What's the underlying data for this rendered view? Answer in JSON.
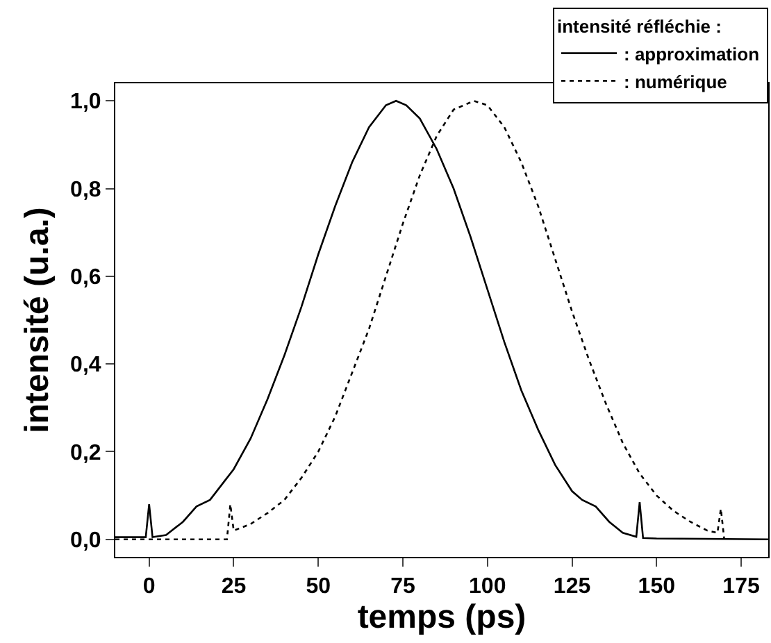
{
  "chart_data": {
    "type": "line",
    "xlabel": "temps (ps)",
    "ylabel": "intensité (u.a.)",
    "legend_title": "intensité réfléchie :",
    "xlim": [
      -10,
      183
    ],
    "xticks": [
      0,
      25,
      50,
      75,
      100,
      125,
      150,
      175
    ],
    "ylim": [
      -0.04,
      1.04
    ],
    "yticks": [
      {
        "value": 0,
        "label": "0,0"
      },
      {
        "value": 0.2,
        "label": "0,2"
      },
      {
        "value": 0.4,
        "label": "0,4"
      },
      {
        "value": 0.6,
        "label": "0,6"
      },
      {
        "value": 0.8,
        "label": "0,8"
      },
      {
        "value": 1.0,
        "label": "1,0"
      }
    ],
    "legend": "top right",
    "marker": "none",
    "series": [
      {
        "name": ": approximation",
        "color": "#000000",
        "line_style": "solid",
        "x": [
          -10,
          -1,
          0,
          1,
          5,
          10,
          14,
          18,
          22,
          25,
          30,
          35,
          40,
          45,
          50,
          55,
          60,
          65,
          70,
          73,
          76,
          80,
          85,
          90,
          95,
          100,
          105,
          110,
          115,
          120,
          125,
          128,
          132,
          136,
          140,
          144,
          145,
          146,
          150,
          183
        ],
        "values": [
          0.005,
          0.005,
          0.08,
          0.005,
          0.01,
          0.04,
          0.075,
          0.09,
          0.13,
          0.16,
          0.23,
          0.32,
          0.42,
          0.53,
          0.65,
          0.76,
          0.86,
          0.94,
          0.99,
          1.0,
          0.99,
          0.96,
          0.89,
          0.8,
          0.69,
          0.57,
          0.45,
          0.34,
          0.25,
          0.17,
          0.11,
          0.09,
          0.075,
          0.04,
          0.015,
          0.006,
          0.085,
          0.003,
          0.002,
          0.0
        ]
      },
      {
        "name": ": numérique",
        "color": "#000000",
        "line_style": "dotted",
        "x": [
          -10,
          23,
          24,
          25,
          30,
          35,
          40,
          45,
          50,
          55,
          60,
          65,
          70,
          75,
          80,
          85,
          90,
          96,
          100,
          105,
          110,
          115,
          120,
          125,
          130,
          135,
          140,
          145,
          150,
          155,
          160,
          165,
          168,
          169,
          170
        ],
        "values": [
          0.0,
          0.0,
          0.08,
          0.02,
          0.035,
          0.06,
          0.09,
          0.14,
          0.2,
          0.28,
          0.38,
          0.48,
          0.6,
          0.72,
          0.83,
          0.92,
          0.98,
          1.0,
          0.99,
          0.94,
          0.86,
          0.76,
          0.64,
          0.52,
          0.41,
          0.31,
          0.22,
          0.15,
          0.1,
          0.065,
          0.04,
          0.02,
          0.015,
          0.07,
          0.0
        ]
      }
    ]
  }
}
